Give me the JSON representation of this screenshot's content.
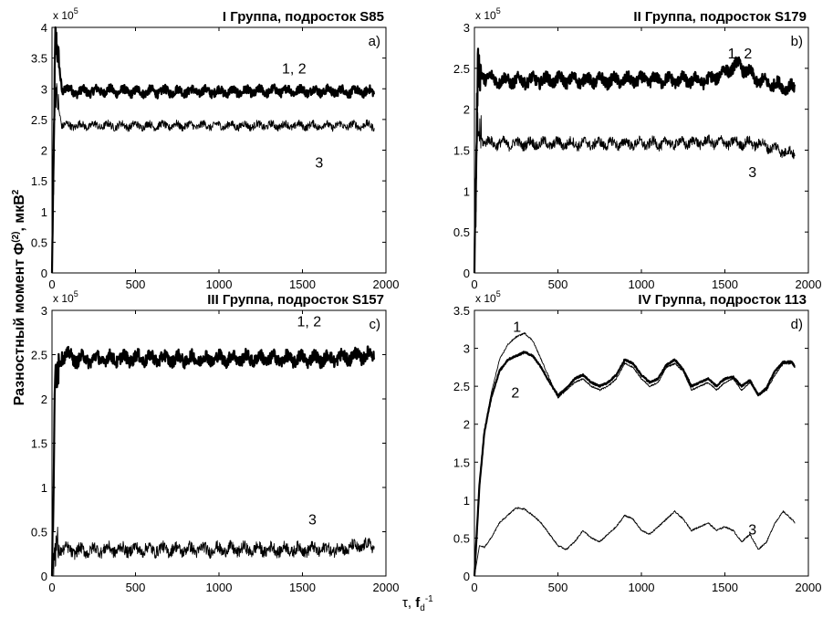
{
  "figure": {
    "ylabel": "Разностный момент Ф",
    "ylabel_sup": "(2)",
    "ylabel_unit": ", мкВ",
    "ylabel_unit_sup": "2",
    "xlabel_tau": "τ, ",
    "xlabel_fd": "f",
    "xlabel_sub": "d",
    "xlabel_sup": "-1",
    "exponent_base": "x 10",
    "exponent_power": "5"
  },
  "chart_data": [
    {
      "type": "line",
      "title": "I Группа, подросток S85",
      "panel_label": "a)",
      "xlim": [
        0,
        2000
      ],
      "ylim": [
        0,
        4
      ],
      "y_multiplier": "x 10^5",
      "xticks": [
        "0",
        "500",
        "1000",
        "1500",
        "2000"
      ],
      "yticks": [
        "0",
        "0.5",
        "1",
        "1.5",
        "2",
        "2.5",
        "3",
        "3.5",
        "4"
      ],
      "series": [
        {
          "name": "1, 2",
          "style": "thick",
          "x": [
            0,
            20,
            60,
            150,
            300,
            500,
            800,
            1100,
            1400,
            1700,
            1930
          ],
          "y": [
            0,
            3.9,
            3.0,
            2.95,
            2.97,
            2.95,
            2.96,
            2.95,
            2.97,
            2.96,
            2.95
          ]
        },
        {
          "name": "3",
          "style": "thin",
          "x": [
            0,
            20,
            60,
            150,
            300,
            500,
            800,
            1100,
            1400,
            1700,
            1930
          ],
          "y": [
            0,
            3.0,
            2.4,
            2.4,
            2.4,
            2.4,
            2.4,
            2.4,
            2.4,
            2.4,
            2.4
          ]
        }
      ],
      "annotations": [
        {
          "text": "1, 2",
          "x": 1450,
          "y": 3.25
        },
        {
          "text": "3",
          "x": 1600,
          "y": 1.72
        }
      ]
    },
    {
      "type": "line",
      "title": "II Группа, подросток S179",
      "panel_label": "b)",
      "xlim": [
        0,
        2000
      ],
      "ylim": [
        0,
        3
      ],
      "y_multiplier": "x 10^5",
      "xticks": [
        "0",
        "500",
        "1000",
        "1500",
        "2000"
      ],
      "yticks": [
        "0",
        "0.5",
        "1",
        "1.5",
        "2",
        "2.5",
        "3"
      ],
      "series": [
        {
          "name": "1, 2",
          "style": "thick",
          "x": [
            0,
            20,
            60,
            150,
            300,
            500,
            800,
            1100,
            1400,
            1580,
            1700,
            1920
          ],
          "y": [
            0,
            2.5,
            2.4,
            2.35,
            2.35,
            2.36,
            2.35,
            2.36,
            2.35,
            2.55,
            2.35,
            2.25
          ]
        },
        {
          "name": "3",
          "style": "thin",
          "x": [
            0,
            20,
            60,
            150,
            300,
            500,
            800,
            1100,
            1400,
            1700,
            1920
          ],
          "y": [
            0,
            1.75,
            1.6,
            1.58,
            1.58,
            1.58,
            1.58,
            1.58,
            1.6,
            1.58,
            1.45
          ]
        }
      ],
      "annotations": [
        {
          "text": "1, 2",
          "x": 1590,
          "y": 2.62
        },
        {
          "text": "3",
          "x": 1665,
          "y": 1.17
        }
      ]
    },
    {
      "type": "line",
      "title": "III Группа, подросток S157",
      "panel_label": "c)",
      "xlim": [
        0,
        2000
      ],
      "ylim": [
        0,
        3
      ],
      "y_multiplier": "x 10^5",
      "xticks": [
        "0",
        "500",
        "1000",
        "1500",
        "2000"
      ],
      "yticks": [
        "0",
        "0.5",
        "1",
        "1.5",
        "2",
        "2.5",
        "3"
      ],
      "series": [
        {
          "name": "1, 2",
          "style": "thick",
          "x": [
            0,
            20,
            60,
            150,
            300,
            500,
            800,
            1100,
            1400,
            1700,
            1930
          ],
          "y": [
            0,
            2.3,
            2.5,
            2.45,
            2.45,
            2.46,
            2.45,
            2.46,
            2.45,
            2.46,
            2.5
          ]
        },
        {
          "name": "3",
          "style": "thin",
          "x": [
            0,
            20,
            60,
            150,
            300,
            500,
            800,
            1100,
            1400,
            1700,
            1930
          ],
          "y": [
            0,
            0.35,
            0.3,
            0.28,
            0.3,
            0.3,
            0.3,
            0.3,
            0.3,
            0.3,
            0.35
          ]
        }
      ],
      "annotations": [
        {
          "text": "1, 2",
          "x": 1540,
          "y": 2.82
        },
        {
          "text": "3",
          "x": 1560,
          "y": 0.58
        }
      ]
    },
    {
      "type": "line",
      "title": "IV Группа, подросток 113",
      "panel_label": "d)",
      "xlim": [
        0,
        2000
      ],
      "ylim": [
        0,
        3.5
      ],
      "y_multiplier": "x 10^5",
      "xticks": [
        "0",
        "500",
        "1000",
        "1500",
        "2000"
      ],
      "yticks": [
        "0",
        "0.5",
        "1",
        "1.5",
        "2",
        "2.5",
        "3",
        "3.5"
      ],
      "series": [
        {
          "name": "1",
          "style": "thin",
          "x": [
            0,
            30,
            60,
            100,
            150,
            200,
            250,
            300,
            350,
            400,
            450,
            500,
            550,
            600,
            650,
            700,
            750,
            800,
            850,
            900,
            950,
            1000,
            1050,
            1100,
            1150,
            1200,
            1250,
            1300,
            1350,
            1400,
            1450,
            1500,
            1550,
            1600,
            1650,
            1700,
            1750,
            1800,
            1850,
            1900,
            1920
          ],
          "y": [
            0,
            1.2,
            1.9,
            2.4,
            2.85,
            3.05,
            3.15,
            3.2,
            3.1,
            2.85,
            2.6,
            2.35,
            2.45,
            2.55,
            2.6,
            2.5,
            2.45,
            2.5,
            2.6,
            2.8,
            2.75,
            2.6,
            2.5,
            2.55,
            2.75,
            2.8,
            2.7,
            2.45,
            2.5,
            2.55,
            2.45,
            2.55,
            2.6,
            2.45,
            2.55,
            2.4,
            2.45,
            2.65,
            2.8,
            2.8,
            2.75
          ]
        },
        {
          "name": "2",
          "style": "thick",
          "x": [
            0,
            30,
            60,
            100,
            150,
            200,
            250,
            300,
            350,
            400,
            450,
            500,
            550,
            600,
            650,
            700,
            750,
            800,
            850,
            900,
            950,
            1000,
            1050,
            1100,
            1150,
            1200,
            1250,
            1300,
            1350,
            1400,
            1450,
            1500,
            1550,
            1600,
            1650,
            1700,
            1750,
            1800,
            1850,
            1900,
            1920
          ],
          "y": [
            0,
            1.2,
            1.9,
            2.35,
            2.7,
            2.85,
            2.9,
            2.95,
            2.9,
            2.75,
            2.55,
            2.38,
            2.47,
            2.6,
            2.65,
            2.55,
            2.5,
            2.55,
            2.65,
            2.85,
            2.8,
            2.65,
            2.55,
            2.6,
            2.78,
            2.85,
            2.72,
            2.5,
            2.55,
            2.6,
            2.5,
            2.6,
            2.62,
            2.5,
            2.58,
            2.38,
            2.48,
            2.7,
            2.82,
            2.82,
            2.75
          ]
        },
        {
          "name": "3",
          "style": "thin",
          "x": [
            0,
            30,
            60,
            100,
            150,
            200,
            250,
            300,
            350,
            400,
            450,
            500,
            550,
            600,
            650,
            700,
            750,
            800,
            850,
            900,
            950,
            1000,
            1050,
            1100,
            1150,
            1200,
            1250,
            1300,
            1350,
            1400,
            1450,
            1500,
            1550,
            1600,
            1650,
            1700,
            1750,
            1800,
            1850,
            1900,
            1920
          ],
          "y": [
            0,
            0.4,
            0.38,
            0.5,
            0.7,
            0.8,
            0.9,
            0.88,
            0.8,
            0.7,
            0.55,
            0.4,
            0.35,
            0.45,
            0.6,
            0.5,
            0.45,
            0.55,
            0.65,
            0.8,
            0.75,
            0.6,
            0.55,
            0.65,
            0.75,
            0.85,
            0.75,
            0.6,
            0.65,
            0.7,
            0.6,
            0.65,
            0.6,
            0.45,
            0.55,
            0.35,
            0.45,
            0.7,
            0.85,
            0.75,
            0.7
          ]
        }
      ],
      "annotations": [
        {
          "text": "1",
          "x": 255,
          "y": 3.22
        },
        {
          "text": "2",
          "x": 245,
          "y": 2.35
        },
        {
          "text": "3",
          "x": 1665,
          "y": 0.55
        }
      ]
    }
  ]
}
